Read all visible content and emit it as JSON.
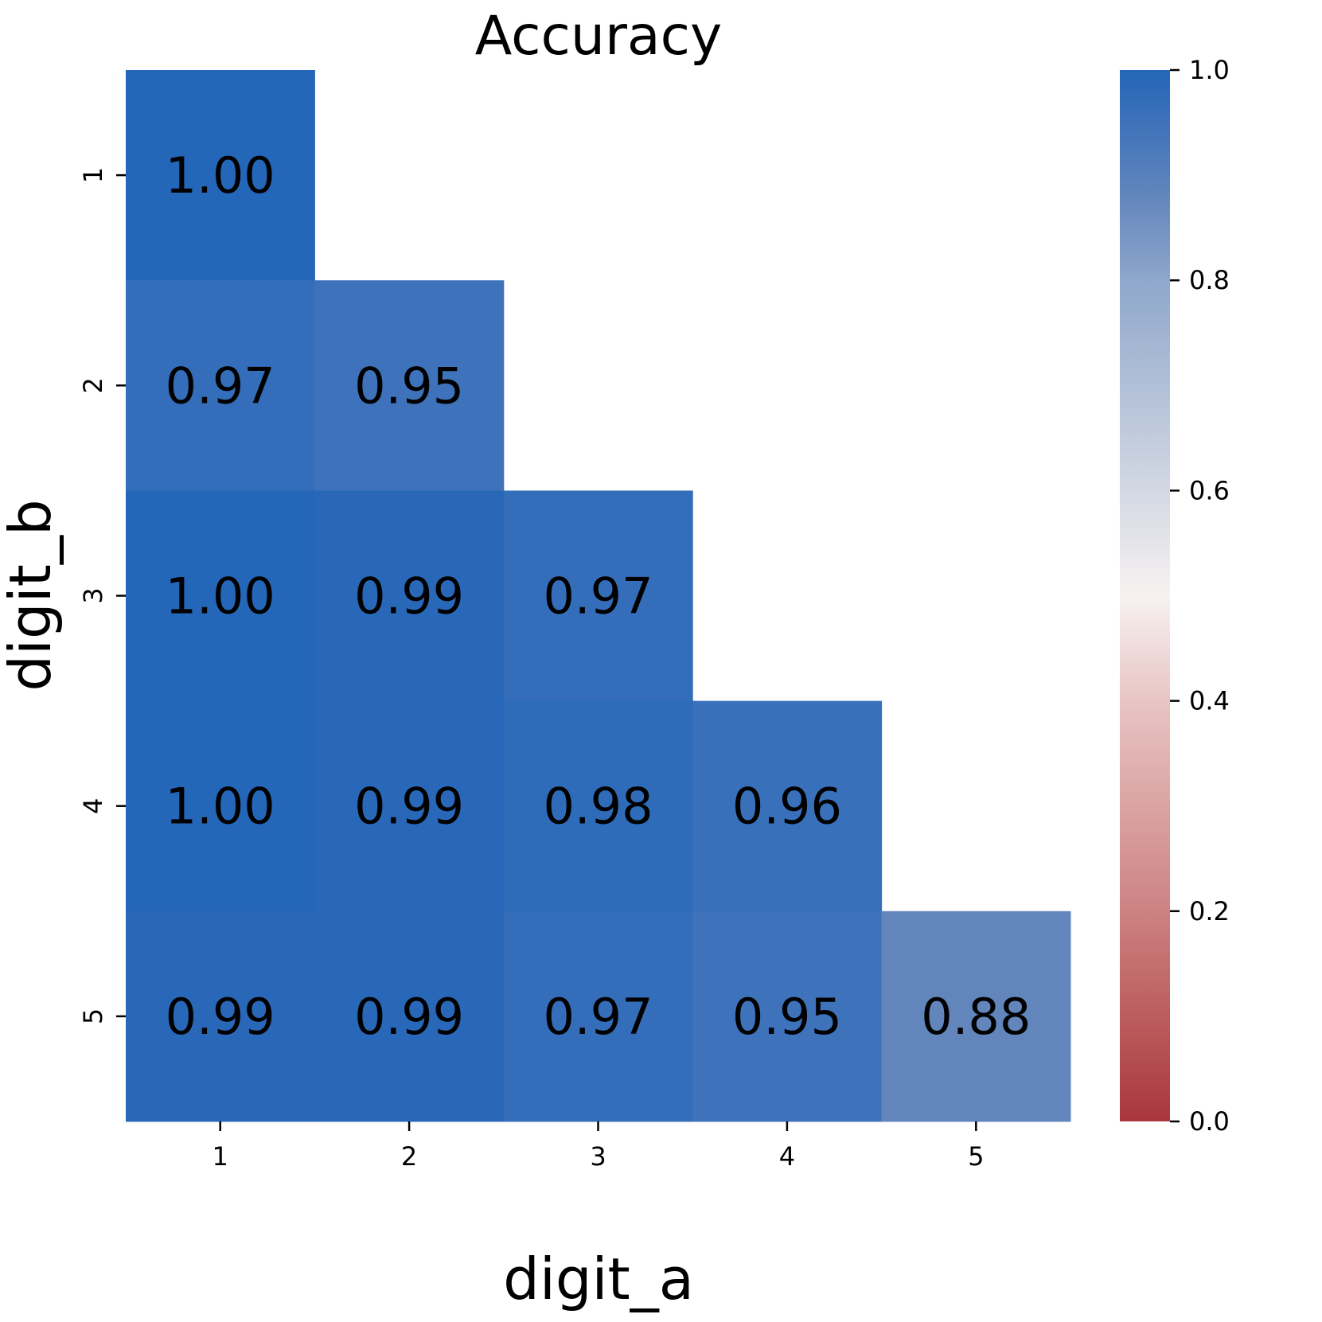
{
  "chart_data": {
    "type": "heatmap",
    "title": "Accuracy",
    "xlabel": "digit_a",
    "ylabel": "digit_b",
    "x_categories": [
      "1",
      "2",
      "3",
      "4",
      "5"
    ],
    "y_categories": [
      "1",
      "2",
      "3",
      "4",
      "5"
    ],
    "values": [
      [
        1.0,
        null,
        null,
        null,
        null
      ],
      [
        0.97,
        0.95,
        null,
        null,
        null
      ],
      [
        1.0,
        0.99,
        0.97,
        null,
        null
      ],
      [
        1.0,
        0.99,
        0.98,
        0.96,
        null
      ],
      [
        0.99,
        0.99,
        0.97,
        0.95,
        0.88
      ]
    ],
    "value_format": "0.00",
    "colormap": "red-white-blue (vlag_r)",
    "color_stops": [
      {
        "v": 0.0,
        "c": "#a9373b"
      },
      {
        "v": 0.2,
        "c": "#cd8282"
      },
      {
        "v": 0.4,
        "c": "#e8c5c4"
      },
      {
        "v": 0.5,
        "c": "#f7f2f1"
      },
      {
        "v": 0.6,
        "c": "#d3d8e3"
      },
      {
        "v": 0.8,
        "c": "#8ea7cb"
      },
      {
        "v": 0.88,
        "c": "#6286bc"
      },
      {
        "v": 0.95,
        "c": "#3e72ba"
      },
      {
        "v": 1.0,
        "c": "#2466b8"
      }
    ],
    "colorbar": {
      "range": [
        0.0,
        1.0
      ],
      "ticks": [
        "0.0",
        "0.2",
        "0.4",
        "0.6",
        "0.8",
        "1.0"
      ]
    },
    "grid": false,
    "mask": "upper triangle"
  }
}
